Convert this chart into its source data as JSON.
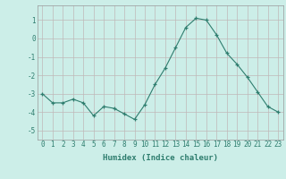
{
  "x": [
    0,
    1,
    2,
    3,
    4,
    5,
    6,
    7,
    8,
    9,
    10,
    11,
    12,
    13,
    14,
    15,
    16,
    17,
    18,
    19,
    20,
    21,
    22,
    23
  ],
  "y": [
    -3.0,
    -3.5,
    -3.5,
    -3.3,
    -3.5,
    -4.2,
    -3.7,
    -3.8,
    -4.1,
    -4.4,
    -3.6,
    -2.5,
    -1.6,
    -0.5,
    0.6,
    1.1,
    1.0,
    0.2,
    -0.8,
    -1.4,
    -2.1,
    -2.9,
    -3.7,
    -4.0
  ],
  "xlabel": "Humidex (Indice chaleur)",
  "ylim": [
    -5.5,
    1.8
  ],
  "yticks": [
    -5,
    -4,
    -3,
    -2,
    -1,
    0,
    1
  ],
  "xticks": [
    0,
    1,
    2,
    3,
    4,
    5,
    6,
    7,
    8,
    9,
    10,
    11,
    12,
    13,
    14,
    15,
    16,
    17,
    18,
    19,
    20,
    21,
    22,
    23
  ],
  "line_color": "#2e7d6e",
  "marker": "+",
  "bg_color": "#cceee8",
  "grid_color": "#c0b8b8",
  "text_color": "#2e7d6e",
  "font_family": "monospace",
  "tick_fontsize": 5.5,
  "label_fontsize": 6.5
}
